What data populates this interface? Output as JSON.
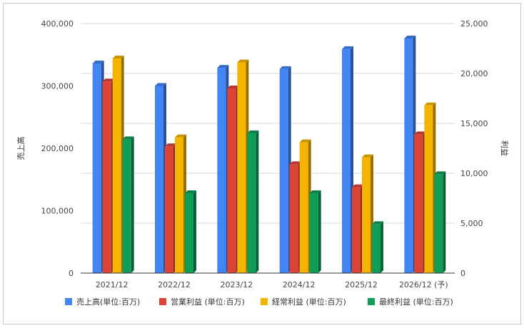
{
  "chart_data": {
    "type": "bar",
    "categories": [
      "2021/12",
      "2022/12",
      "2023/12",
      "2024/12",
      "2025/12",
      "2026/12 (予)"
    ],
    "ylabel_left": "売上高",
    "ylabel_right": "利益",
    "ylim_left": [
      0,
      400000
    ],
    "ylim_right": [
      0,
      25000
    ],
    "yticks_left": [
      "0",
      "100,000",
      "200,000",
      "300,000",
      "400,000"
    ],
    "yticks_right": [
      "0",
      "5,000",
      "10,000",
      "15,000",
      "20,000",
      "25,000"
    ],
    "grid": true,
    "legend_position": "bottom",
    "series": [
      {
        "name": "売上高(単位:百万)",
        "axis": "left",
        "color": "#4285F4",
        "values": [
          336000,
          300000,
          329000,
          327000,
          359000,
          376000
        ]
      },
      {
        "name": "営業利益 (単位:百万)",
        "axis": "right",
        "color": "#DB4437",
        "values": [
          19200,
          12700,
          18500,
          10900,
          8600,
          13900
        ]
      },
      {
        "name": "経常利益 (単位:百万)",
        "axis": "right",
        "color": "#F4B400",
        "values": [
          21500,
          13600,
          21100,
          13100,
          11600,
          16800
        ]
      },
      {
        "name": "最終利益 (単位:百万)",
        "axis": "right",
        "color": "#0F9D58",
        "values": [
          13400,
          8000,
          14000,
          8000,
          4900,
          9900
        ]
      }
    ]
  }
}
